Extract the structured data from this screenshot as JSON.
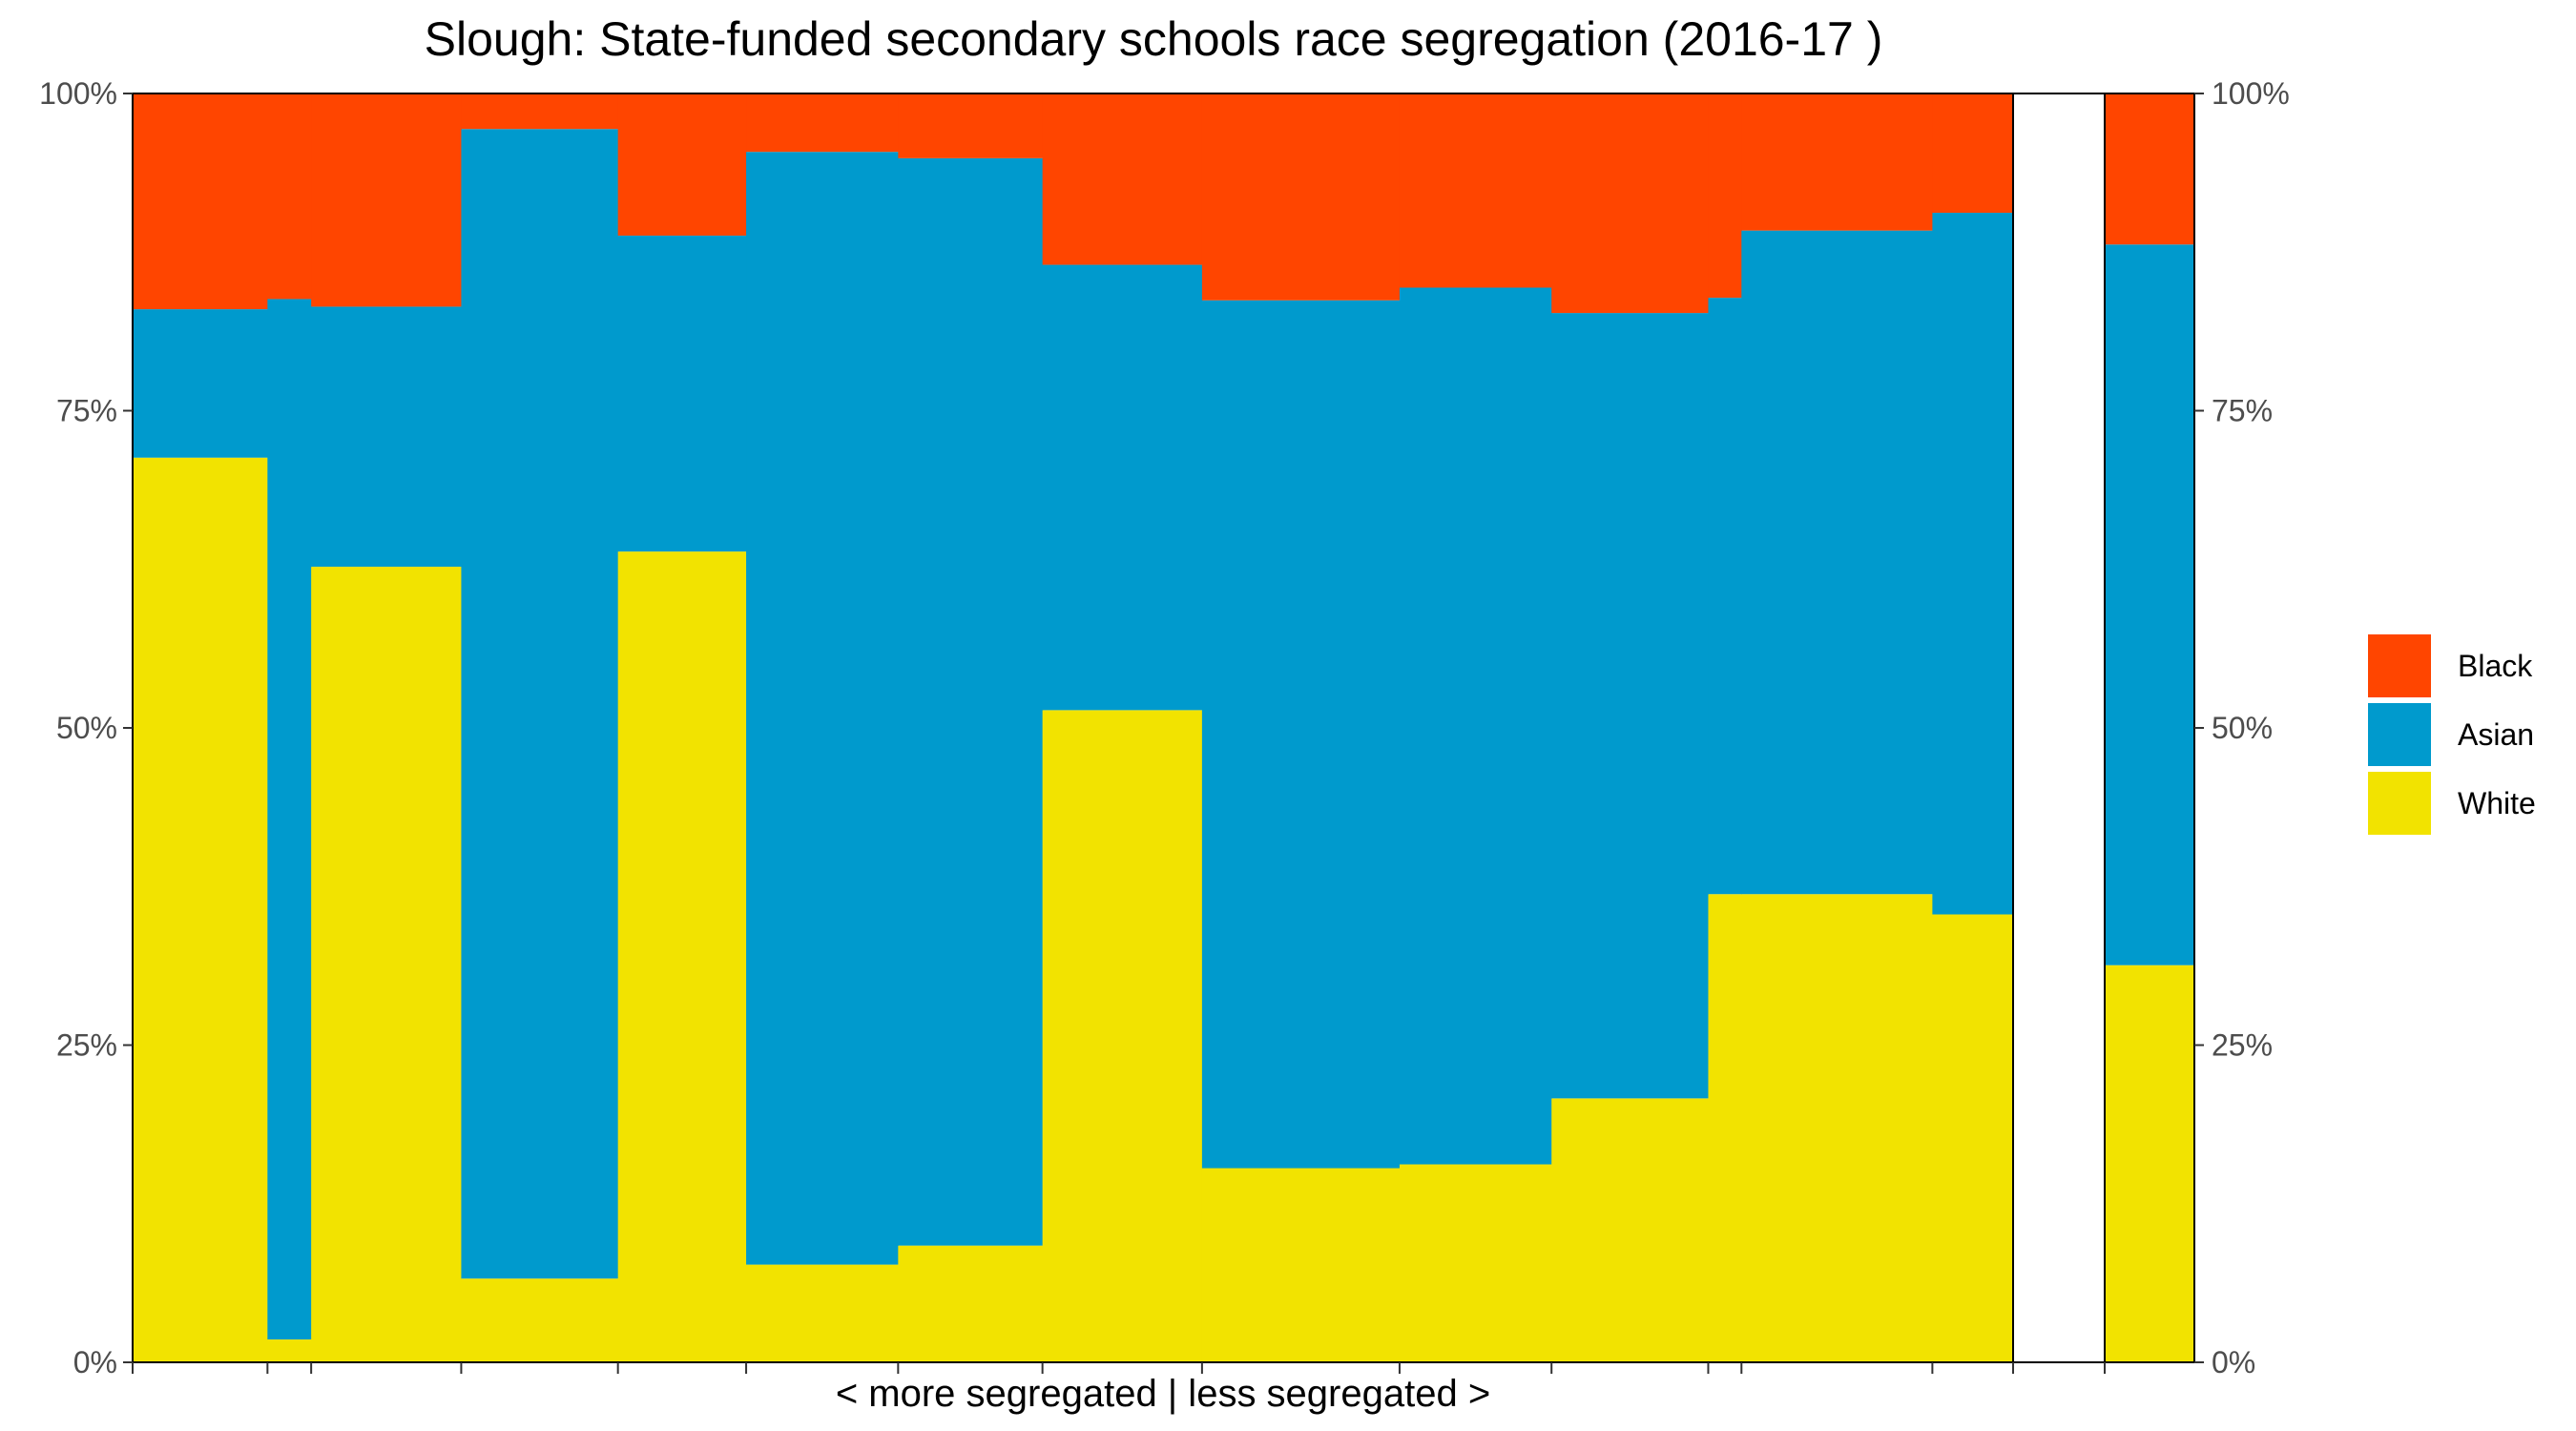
{
  "chart_data": {
    "type": "bar",
    "subtype": "variable-width stacked 100% (marimekko)",
    "title": "Slough: State-funded secondary schools race segregation (2016-17 )",
    "xlabel": "< more segregated | less segregated >",
    "ylabel": "",
    "ylim": [
      0,
      1
    ],
    "y_tick_labels": [
      "0%",
      "25%",
      "50%",
      "75%",
      "100%"
    ],
    "y_axis_sides": "left and right",
    "grid": false,
    "legend_position": "right",
    "series": [
      {
        "name": "Black",
        "color": "#FF4500"
      },
      {
        "name": "Asian",
        "color": "#009ACD"
      },
      {
        "name": "White",
        "color": "#F2E300"
      }
    ],
    "schools": [
      {
        "relative_width": 0.142,
        "White": 0.713,
        "Asian": 0.117,
        "Black": 0.17
      },
      {
        "relative_width": 0.046,
        "White": 0.018,
        "Asian": 0.82,
        "Black": 0.162
      },
      {
        "relative_width": 0.158,
        "White": 0.627,
        "Asian": 0.205,
        "Black": 0.168
      },
      {
        "relative_width": 0.165,
        "White": 0.066,
        "Asian": 0.906,
        "Black": 0.028
      },
      {
        "relative_width": 0.135,
        "White": 0.639,
        "Asian": 0.249,
        "Black": 0.112
      },
      {
        "relative_width": 0.16,
        "White": 0.077,
        "Asian": 0.877,
        "Black": 0.046
      },
      {
        "relative_width": 0.152,
        "White": 0.092,
        "Asian": 0.857,
        "Black": 0.051
      },
      {
        "relative_width": 0.168,
        "White": 0.514,
        "Asian": 0.351,
        "Black": 0.135
      },
      {
        "relative_width": 0.208,
        "White": 0.153,
        "Asian": 0.684,
        "Black": 0.163
      },
      {
        "relative_width": 0.16,
        "White": 0.156,
        "Asian": 0.691,
        "Black": 0.153
      },
      {
        "relative_width": 0.165,
        "White": 0.208,
        "Asian": 0.619,
        "Black": 0.173
      },
      {
        "relative_width": 0.035,
        "White": 0.369,
        "Asian": 0.47,
        "Black": 0.161
      },
      {
        "relative_width": 0.201,
        "White": 0.369,
        "Asian": 0.523,
        "Black": 0.108
      },
      {
        "relative_width": 0.085,
        "White": 0.353,
        "Asian": 0.553,
        "Black": 0.094
      }
    ],
    "overall": {
      "White": 0.313,
      "Asian": 0.568,
      "Black": 0.119
    }
  }
}
